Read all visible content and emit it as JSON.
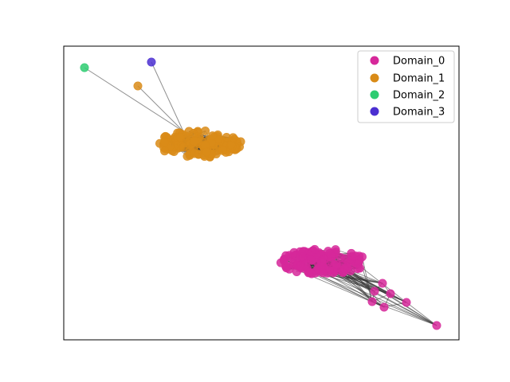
{
  "legend": {
    "placement": "top-right",
    "entries": [
      {
        "label": "Domain_0",
        "color": "#d6289a"
      },
      {
        "label": "Domain_1",
        "color": "#d98b17"
      },
      {
        "label": "Domain_2",
        "color": "#2ecc71"
      },
      {
        "label": "Domain_3",
        "color": "#4b2fd1"
      }
    ]
  },
  "graph": {
    "axes_ticks": "none",
    "edge_color": "#333333",
    "node_opacity": 0.85,
    "clusters": [
      {
        "domain": "Domain_0",
        "shape": "dense-ellipse"
      },
      {
        "domain": "Domain_1",
        "shape": "dense-ellipse"
      }
    ],
    "outlier_nodes": [
      {
        "domain": "Domain_0",
        "count": 7
      },
      {
        "domain": "Domain_1",
        "count": 1
      },
      {
        "domain": "Domain_2",
        "count": 1
      },
      {
        "domain": "Domain_3",
        "count": 1
      }
    ]
  }
}
